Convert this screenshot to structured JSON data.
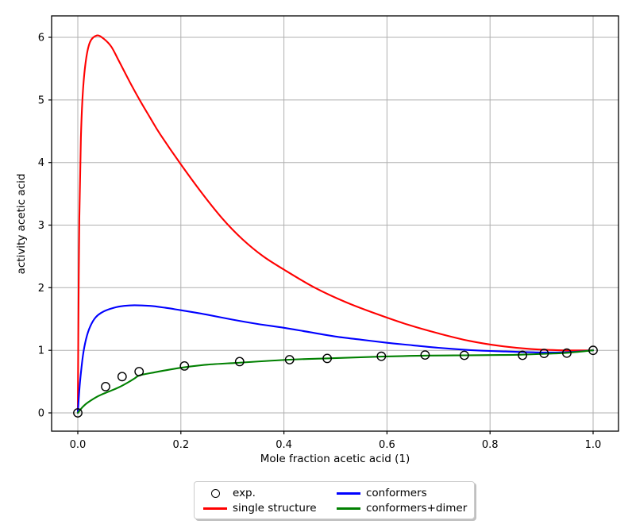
{
  "style": {
    "background": "#ffffff",
    "grid_color": "#b0b0b0",
    "spine_color": "#000000",
    "tick_label_color": "#000000",
    "exp_marker_color": "#000000",
    "single_structure_color": "#ff0000",
    "conformers_color": "#0000ff",
    "conformers_dimer_color": "#008000"
  },
  "chart_data": {
    "type": "line",
    "title": "",
    "xlabel": "Mole fraction acetic acid (1)",
    "ylabel": "activity acetic acid",
    "xlim": [
      -0.05,
      1.05
    ],
    "ylim": [
      -0.29,
      6.34
    ],
    "grid": true,
    "legend_position": "lower center, below axes, 2 columns, boxed with shadow",
    "x_ticks": [
      0.0,
      0.2,
      0.4,
      0.6,
      0.8,
      1.0
    ],
    "x_tick_labels": [
      "0.0",
      "0.2",
      "0.4",
      "0.6",
      "0.8",
      "1.0"
    ],
    "y_ticks": [
      0,
      1,
      2,
      3,
      4,
      5,
      6
    ],
    "y_tick_labels": [
      "0",
      "1",
      "2",
      "3",
      "4",
      "5",
      "6"
    ],
    "series": [
      {
        "name": "exp.",
        "type": "scatter",
        "marker": "open-circle",
        "color": "#000000",
        "x": [
          0.0,
          0.054,
          0.086,
          0.119,
          0.207,
          0.314,
          0.411,
          0.484,
          0.589,
          0.674,
          0.75,
          0.863,
          0.905,
          0.949,
          1.0
        ],
        "y": [
          0.0,
          0.42,
          0.58,
          0.66,
          0.75,
          0.82,
          0.85,
          0.87,
          0.905,
          0.925,
          0.92,
          0.92,
          0.95,
          0.955,
          1.0
        ]
      },
      {
        "name": "single structure",
        "type": "line",
        "color": "#ff0000",
        "x": [
          0.0,
          0.001,
          0.003,
          0.006,
          0.01,
          0.016,
          0.024,
          0.037,
          0.05,
          0.065,
          0.08,
          0.1,
          0.12,
          0.14,
          0.16,
          0.2,
          0.24,
          0.28,
          0.32,
          0.36,
          0.4,
          0.46,
          0.52,
          0.58,
          0.64,
          0.7,
          0.76,
          0.82,
          0.88,
          0.94,
          1.0
        ],
        "y": [
          0.0,
          1.2,
          3.1,
          4.4,
          5.15,
          5.65,
          5.93,
          6.03,
          5.98,
          5.85,
          5.62,
          5.3,
          5.0,
          4.72,
          4.45,
          3.97,
          3.52,
          3.11,
          2.77,
          2.5,
          2.29,
          2.0,
          1.77,
          1.58,
          1.41,
          1.27,
          1.15,
          1.07,
          1.02,
          1.0,
          1.0
        ]
      },
      {
        "name": "conformers",
        "type": "line",
        "color": "#0000ff",
        "x": [
          0.0,
          0.002,
          0.005,
          0.01,
          0.016,
          0.024,
          0.035,
          0.05,
          0.07,
          0.09,
          0.11,
          0.14,
          0.17,
          0.2,
          0.25,
          0.3,
          0.35,
          0.4,
          0.45,
          0.5,
          0.55,
          0.6,
          0.65,
          0.7,
          0.75,
          0.8,
          0.85,
          0.9,
          0.95,
          1.0
        ],
        "y": [
          0.0,
          0.25,
          0.55,
          0.92,
          1.18,
          1.38,
          1.53,
          1.62,
          1.68,
          1.71,
          1.72,
          1.71,
          1.68,
          1.64,
          1.57,
          1.49,
          1.42,
          1.36,
          1.29,
          1.22,
          1.17,
          1.12,
          1.08,
          1.04,
          1.01,
          0.99,
          0.975,
          0.965,
          0.97,
          1.0
        ]
      },
      {
        "name": "conformers+dimer",
        "type": "line",
        "color": "#008000",
        "x": [
          0.0,
          0.01,
          0.02,
          0.04,
          0.06,
          0.08,
          0.1,
          0.11,
          0.12,
          0.15,
          0.2,
          0.25,
          0.31,
          0.41,
          0.48,
          0.59,
          0.67,
          0.75,
          0.82,
          0.86,
          0.91,
          0.95,
          1.0
        ],
        "y": [
          0.0,
          0.1,
          0.17,
          0.27,
          0.34,
          0.41,
          0.5,
          0.55,
          0.6,
          0.65,
          0.72,
          0.77,
          0.8,
          0.85,
          0.87,
          0.9,
          0.915,
          0.92,
          0.925,
          0.93,
          0.945,
          0.96,
          1.0
        ]
      }
    ]
  },
  "legend": {
    "entries": [
      {
        "label": "exp.",
        "marker": "open-circle",
        "color": "#000000"
      },
      {
        "label": "conformers",
        "marker": "line",
        "color": "#0000ff"
      },
      {
        "label": "single structure",
        "marker": "line",
        "color": "#ff0000"
      },
      {
        "label": "conformers+dimer",
        "marker": "line",
        "color": "#008000"
      }
    ]
  }
}
